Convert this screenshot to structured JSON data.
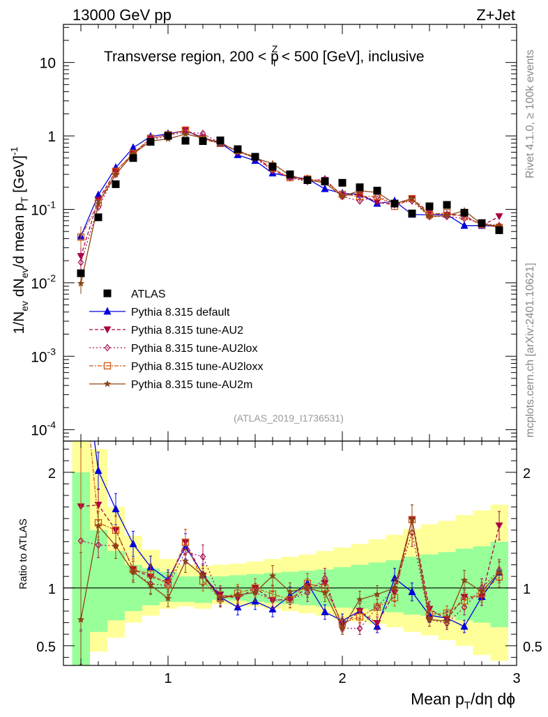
{
  "header": {
    "left_label": "13000 GeV pp",
    "right_label": "Z+Jet"
  },
  "side_labels": {
    "rivet": "Rivet 4.1.0, ≥ 100k events",
    "mcplots": "mcplots.cern.ch [arXiv:2401.10621]"
  },
  "chart_data": {
    "type": "line",
    "title_parts": {
      "pre": "Transverse region, 200 < p",
      "sub": "T",
      "sup": "Z",
      "post": " < 500 [GeV], inclusive"
    },
    "analysis_tag": "(ATLAS_2019_I1736531)",
    "ylabel": "1/N_ev dN_ev/d mean p_T [GeV]^-1",
    "ylabel_parts": {
      "a": "1/N",
      "a_sub": "ev",
      "b": " dN",
      "b_sub": "ev",
      "c": "/d mean p",
      "c_sub": "T",
      "d": " [GeV]",
      "d_sup": "-1"
    },
    "xlabel_parts": {
      "a": "Mean p",
      "a_sub": "T",
      "b": "/dη dϕ"
    },
    "ratio_ylabel": "Ratio to ATLAS",
    "x_range": [
      0.4,
      3.0
    ],
    "y_range_log": [
      7e-05,
      33
    ],
    "ratio_y_range": [
      0.33,
      2.27
    ],
    "x_ticks": [
      {
        "v": 1,
        "label": "1"
      },
      {
        "v": 2,
        "label": "2"
      },
      {
        "v": 3,
        "label": "3"
      }
    ],
    "y_ticks": [
      {
        "v": 0.0001,
        "base": "10",
        "exp": "-4"
      },
      {
        "v": 0.001,
        "base": "10",
        "exp": "-3"
      },
      {
        "v": 0.01,
        "base": "10",
        "exp": "-2"
      },
      {
        "v": 0.1,
        "base": "10",
        "exp": "-1"
      },
      {
        "v": 1,
        "base": "1",
        "exp": ""
      },
      {
        "v": 10,
        "base": "10",
        "exp": ""
      }
    ],
    "ratio_ticks": [
      {
        "v": 0.5,
        "label": "0.5"
      },
      {
        "v": 1,
        "label": "1"
      },
      {
        "v": 2,
        "label": "2"
      }
    ],
    "x": [
      0.5,
      0.6,
      0.7,
      0.8,
      0.9,
      1.0,
      1.1,
      1.2,
      1.3,
      1.4,
      1.5,
      1.6,
      1.7,
      1.8,
      1.9,
      2.0,
      2.1,
      2.2,
      2.3,
      2.4,
      2.5,
      2.6,
      2.7,
      2.8,
      2.9
    ],
    "data": {
      "name": "ATLAS",
      "values": [
        0.0135,
        0.078,
        0.22,
        0.5,
        0.83,
        1.0,
        0.86,
        0.85,
        0.87,
        0.66,
        0.52,
        0.38,
        0.3,
        0.25,
        0.24,
        0.23,
        0.2,
        0.18,
        0.12,
        0.088,
        0.11,
        0.115,
        0.09,
        0.065,
        0.052
      ]
    },
    "series": [
      {
        "name": "Pythia 8.315 default",
        "color": "#0000dd",
        "marker": "triangle-up",
        "dash": "",
        "values": [
          0.043,
          0.157,
          0.37,
          0.69,
          0.98,
          1.07,
          1.17,
          0.95,
          0.8,
          0.55,
          0.46,
          0.31,
          0.28,
          0.26,
          0.19,
          0.165,
          0.16,
          0.12,
          0.13,
          0.085,
          0.084,
          0.085,
          0.06,
          0.06,
          0.059
        ]
      },
      {
        "name": "Pythia 8.315 tune-AU2",
        "color": "#aa0044",
        "marker": "triangle-down",
        "dash": "5,3",
        "values": [
          0.023,
          0.134,
          0.33,
          0.58,
          0.91,
          1.05,
          1.2,
          0.94,
          0.82,
          0.6,
          0.52,
          0.34,
          0.27,
          0.25,
          0.25,
          0.155,
          0.16,
          0.125,
          0.115,
          0.14,
          0.09,
          0.084,
          0.083,
          0.06,
          0.08
        ]
      },
      {
        "name": "Pythia 8.315 tune-AU2lox",
        "color": "#aa1155",
        "marker": "diamond-open",
        "dash": "2,3",
        "values": [
          0.019,
          0.107,
          0.3,
          0.57,
          0.86,
          1.02,
          1.13,
          1.08,
          0.8,
          0.62,
          0.5,
          0.34,
          0.27,
          0.24,
          0.26,
          0.15,
          0.13,
          0.15,
          0.12,
          0.13,
          0.08,
          0.08,
          0.075,
          0.065,
          0.06
        ]
      },
      {
        "name": "Pythia 8.315 tune-AU2loxx",
        "color": "#cc5511",
        "marker": "square-open",
        "dash": "6,2,2,2",
        "values": [
          0.042,
          0.122,
          0.33,
          0.58,
          0.93,
          1.03,
          1.2,
          0.9,
          0.79,
          0.63,
          0.52,
          0.36,
          0.27,
          0.26,
          0.24,
          0.16,
          0.15,
          0.15,
          0.11,
          0.14,
          0.085,
          0.09,
          0.08,
          0.062,
          0.057
        ]
      },
      {
        "name": "Pythia 8.315 tune-AU2m",
        "color": "#8b4513",
        "marker": "star",
        "dash": "",
        "values": [
          0.0098,
          0.12,
          0.3,
          0.57,
          0.85,
          0.91,
          1.06,
          0.94,
          0.79,
          0.62,
          0.5,
          0.42,
          0.29,
          0.25,
          0.23,
          0.15,
          0.18,
          0.17,
          0.12,
          0.14,
          0.08,
          0.082,
          0.096,
          0.063,
          0.059
        ]
      }
    ],
    "legend": {
      "placement": "lower-left"
    },
    "ratio_bands": {
      "green_lo": [
        0.33,
        0.62,
        0.72,
        0.8,
        0.85,
        0.88,
        0.88,
        0.87,
        0.9,
        0.89,
        0.88,
        0.87,
        0.86,
        0.85,
        0.84,
        0.83,
        0.82,
        0.8,
        0.79,
        0.77,
        0.76,
        0.75,
        0.72,
        0.7,
        0.66
      ],
      "green_hi": [
        2.0,
        1.5,
        1.32,
        1.2,
        1.17,
        1.14,
        1.1,
        1.1,
        1.1,
        1.11,
        1.12,
        1.13,
        1.14,
        1.15,
        1.16,
        1.18,
        1.2,
        1.22,
        1.24,
        1.27,
        1.29,
        1.31,
        1.34,
        1.36,
        1.4
      ],
      "yellow_lo": [
        0.33,
        0.45,
        0.57,
        0.7,
        0.76,
        0.82,
        0.84,
        0.82,
        0.86,
        0.85,
        0.84,
        0.82,
        0.8,
        0.78,
        0.76,
        0.73,
        0.71,
        0.69,
        0.66,
        0.62,
        0.59,
        0.55,
        0.5,
        0.42,
        0.37
      ],
      "yellow_hi": [
        2.27,
        2.2,
        1.7,
        1.45,
        1.33,
        1.25,
        1.2,
        1.19,
        1.2,
        1.21,
        1.23,
        1.25,
        1.27,
        1.29,
        1.32,
        1.35,
        1.38,
        1.42,
        1.46,
        1.51,
        1.55,
        1.58,
        1.63,
        1.67,
        1.72
      ]
    }
  }
}
